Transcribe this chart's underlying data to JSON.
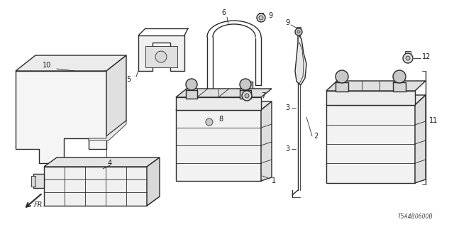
{
  "background_color": "#ffffff",
  "diagram_code": "T5A4B0600B",
  "line_color": "#2a2a2a",
  "label_color": "#1a1a1a",
  "lw_main": 1.0,
  "lw_thin": 0.6,
  "lw_thick": 1.4
}
